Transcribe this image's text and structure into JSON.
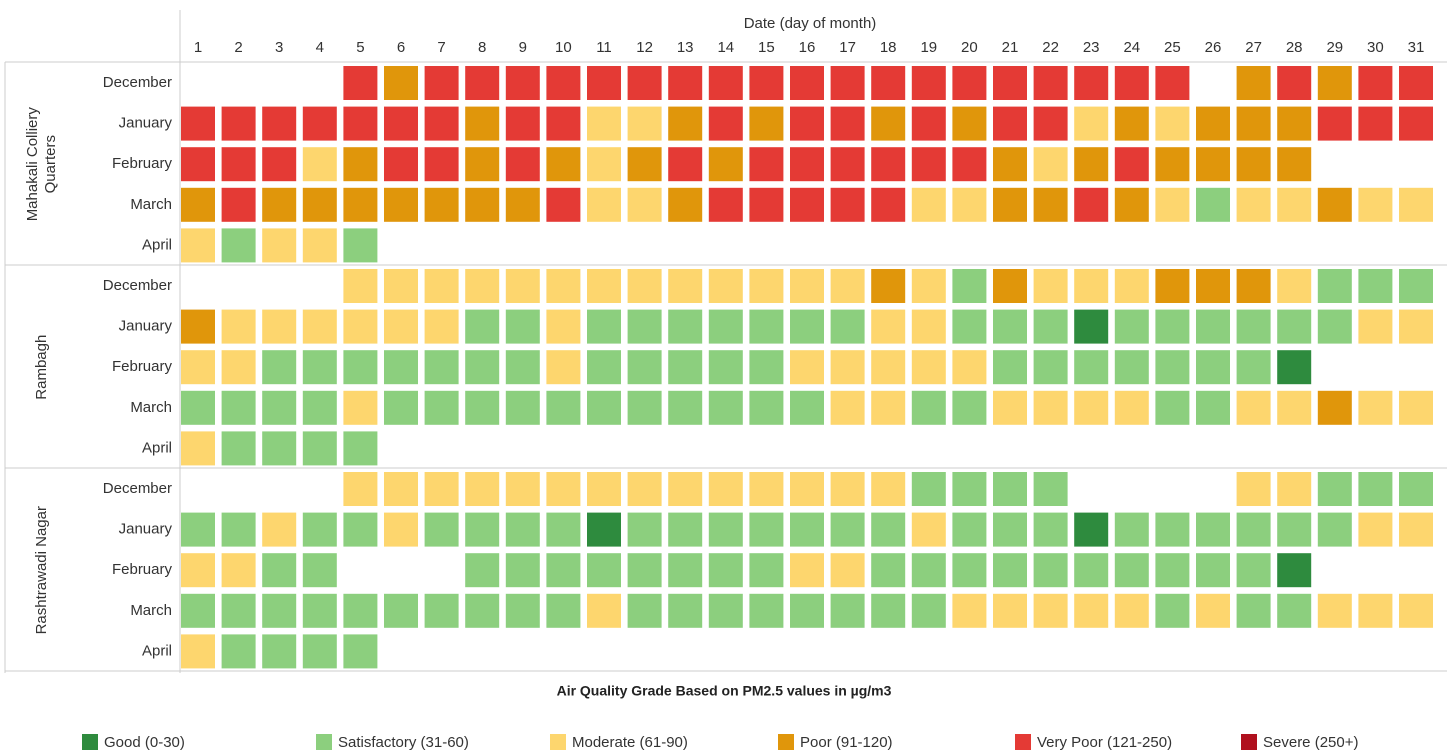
{
  "chart_data": {
    "type": "heatmap",
    "xlabel": "Date (day of month)",
    "categories": [
      1,
      2,
      3,
      4,
      5,
      6,
      7,
      8,
      9,
      10,
      11,
      12,
      13,
      14,
      15,
      16,
      17,
      18,
      19,
      20,
      21,
      22,
      23,
      24,
      25,
      26,
      27,
      28,
      29,
      30,
      31
    ],
    "title": "Air Quality Grade Based on PM2.5 values in µg/m3",
    "legend": [
      {
        "label": "Good (0-30)",
        "color": "#2e8b3e"
      },
      {
        "label": "Satisfactory (31-60)",
        "color": "#8ccf7e"
      },
      {
        "label": "Moderate (61-90)",
        "color": "#fdd66e"
      },
      {
        "label": "Poor (91-120)",
        "color": "#e0960b"
      },
      {
        "label": "Very Poor (121-250)",
        "color": "#e43a35"
      },
      {
        "label": "Severe (250+)",
        "color": "#b0101e"
      }
    ],
    "groups": [
      {
        "name": "Mahakali Colliery Quarters",
        "rows": [
          {
            "label": "December",
            "values": [
              null,
              null,
              null,
              null,
              4,
              3,
              4,
              4,
              4,
              4,
              4,
              4,
              4,
              4,
              4,
              4,
              4,
              4,
              4,
              4,
              4,
              4,
              4,
              4,
              4,
              null,
              3,
              4,
              3,
              4,
              4
            ]
          },
          {
            "label": "January",
            "values": [
              4,
              4,
              4,
              4,
              4,
              4,
              4,
              3,
              4,
              4,
              2,
              2,
              3,
              4,
              3,
              4,
              4,
              3,
              4,
              3,
              4,
              4,
              2,
              3,
              2,
              3,
              3,
              3,
              4,
              4,
              4
            ]
          },
          {
            "label": "February",
            "values": [
              4,
              4,
              4,
              2,
              3,
              4,
              4,
              3,
              4,
              3,
              2,
              3,
              4,
              3,
              4,
              4,
              4,
              4,
              4,
              4,
              3,
              2,
              3,
              4,
              3,
              3,
              3,
              3,
              null,
              null,
              null
            ]
          },
          {
            "label": "March",
            "values": [
              3,
              4,
              3,
              3,
              3,
              3,
              3,
              3,
              3,
              4,
              2,
              2,
              3,
              4,
              4,
              4,
              4,
              4,
              2,
              2,
              3,
              3,
              4,
              3,
              2,
              1,
              2,
              2,
              3,
              2,
              2
            ]
          },
          {
            "label": "April",
            "values": [
              2,
              1,
              2,
              2,
              1,
              null,
              null,
              null,
              null,
              null,
              null,
              null,
              null,
              null,
              null,
              null,
              null,
              null,
              null,
              null,
              null,
              null,
              null,
              null,
              null,
              null,
              null,
              null,
              null,
              null,
              null
            ]
          }
        ]
      },
      {
        "name": "Rambagh",
        "rows": [
          {
            "label": "December",
            "values": [
              null,
              null,
              null,
              null,
              2,
              2,
              2,
              2,
              2,
              2,
              2,
              2,
              2,
              2,
              2,
              2,
              2,
              3,
              2,
              1,
              3,
              2,
              2,
              2,
              3,
              3,
              3,
              2,
              1,
              1,
              1
            ]
          },
          {
            "label": "January",
            "values": [
              3,
              2,
              2,
              2,
              2,
              2,
              2,
              1,
              1,
              2,
              1,
              1,
              1,
              1,
              1,
              1,
              1,
              2,
              2,
              1,
              1,
              1,
              0,
              1,
              1,
              1,
              1,
              1,
              1,
              2,
              2
            ]
          },
          {
            "label": "February",
            "values": [
              2,
              2,
              1,
              1,
              1,
              1,
              1,
              1,
              1,
              2,
              1,
              1,
              1,
              1,
              1,
              2,
              2,
              2,
              2,
              2,
              1,
              1,
              1,
              1,
              1,
              1,
              1,
              0,
              null,
              null,
              null
            ]
          },
          {
            "label": "March",
            "values": [
              1,
              1,
              1,
              1,
              2,
              1,
              1,
              1,
              1,
              1,
              1,
              1,
              1,
              1,
              1,
              1,
              2,
              2,
              1,
              1,
              2,
              2,
              2,
              2,
              1,
              1,
              2,
              2,
              3,
              2,
              2
            ]
          },
          {
            "label": "April",
            "values": [
              2,
              1,
              1,
              1,
              1,
              null,
              null,
              null,
              null,
              null,
              null,
              null,
              null,
              null,
              null,
              null,
              null,
              null,
              null,
              null,
              null,
              null,
              null,
              null,
              null,
              null,
              null,
              null,
              null,
              null,
              null
            ]
          }
        ]
      },
      {
        "name": "Rashtrawadi Nagar",
        "rows": [
          {
            "label": "December",
            "values": [
              null,
              null,
              null,
              null,
              2,
              2,
              2,
              2,
              2,
              2,
              2,
              2,
              2,
              2,
              2,
              2,
              2,
              2,
              1,
              1,
              1,
              1,
              null,
              null,
              null,
              null,
              2,
              2,
              1,
              1,
              1
            ]
          },
          {
            "label": "January",
            "values": [
              1,
              1,
              2,
              1,
              1,
              2,
              1,
              1,
              1,
              1,
              0,
              1,
              1,
              1,
              1,
              1,
              1,
              1,
              2,
              1,
              1,
              1,
              0,
              1,
              1,
              1,
              1,
              1,
              1,
              2,
              2
            ]
          },
          {
            "label": "February",
            "values": [
              2,
              2,
              1,
              1,
              null,
              null,
              null,
              1,
              1,
              1,
              1,
              1,
              1,
              1,
              1,
              2,
              2,
              1,
              1,
              1,
              1,
              1,
              1,
              1,
              1,
              1,
              1,
              0,
              null,
              null,
              null
            ]
          },
          {
            "label": "March",
            "values": [
              1,
              1,
              1,
              1,
              1,
              1,
              1,
              1,
              1,
              1,
              2,
              1,
              1,
              1,
              1,
              1,
              1,
              1,
              1,
              2,
              2,
              2,
              2,
              2,
              1,
              2,
              1,
              1,
              2,
              2,
              2
            ]
          },
          {
            "label": "April",
            "values": [
              2,
              1,
              1,
              1,
              1,
              null,
              null,
              null,
              null,
              null,
              null,
              null,
              null,
              null,
              null,
              null,
              null,
              null,
              null,
              null,
              null,
              null,
              null,
              null,
              null,
              null,
              null,
              null,
              null,
              null,
              null
            ]
          }
        ]
      }
    ]
  }
}
